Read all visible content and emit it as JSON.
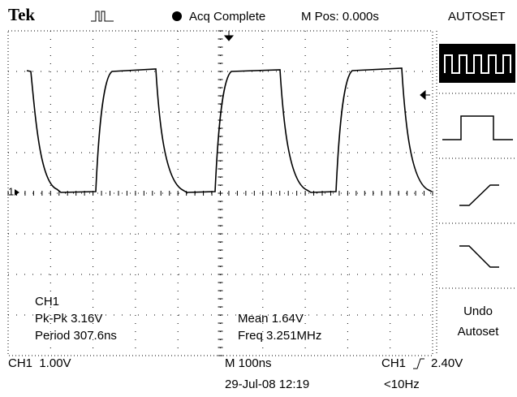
{
  "header": {
    "brand": "Tek",
    "status": "Acq Complete",
    "position": "M Pos: 0.000s",
    "menu_title": "AUTOSET"
  },
  "channel_marker": "1",
  "measurements": {
    "channel": "CH1",
    "pk_pk": "Pk-Pk 3.16V",
    "period": "Period 307.6ns",
    "mean": "Mean 1.64V",
    "freq": "Freq 3.251MHz"
  },
  "menu": {
    "undo": [
      "Undo",
      "Autoset"
    ]
  },
  "footer": {
    "ch_scale": "CH1  1.00V",
    "time_scale": "M 100ns",
    "trigger_channel": "CH1",
    "trigger_level": "2.40V",
    "date": "29-Jul-08 12:19",
    "trigger_freq": "<10Hz"
  }
}
